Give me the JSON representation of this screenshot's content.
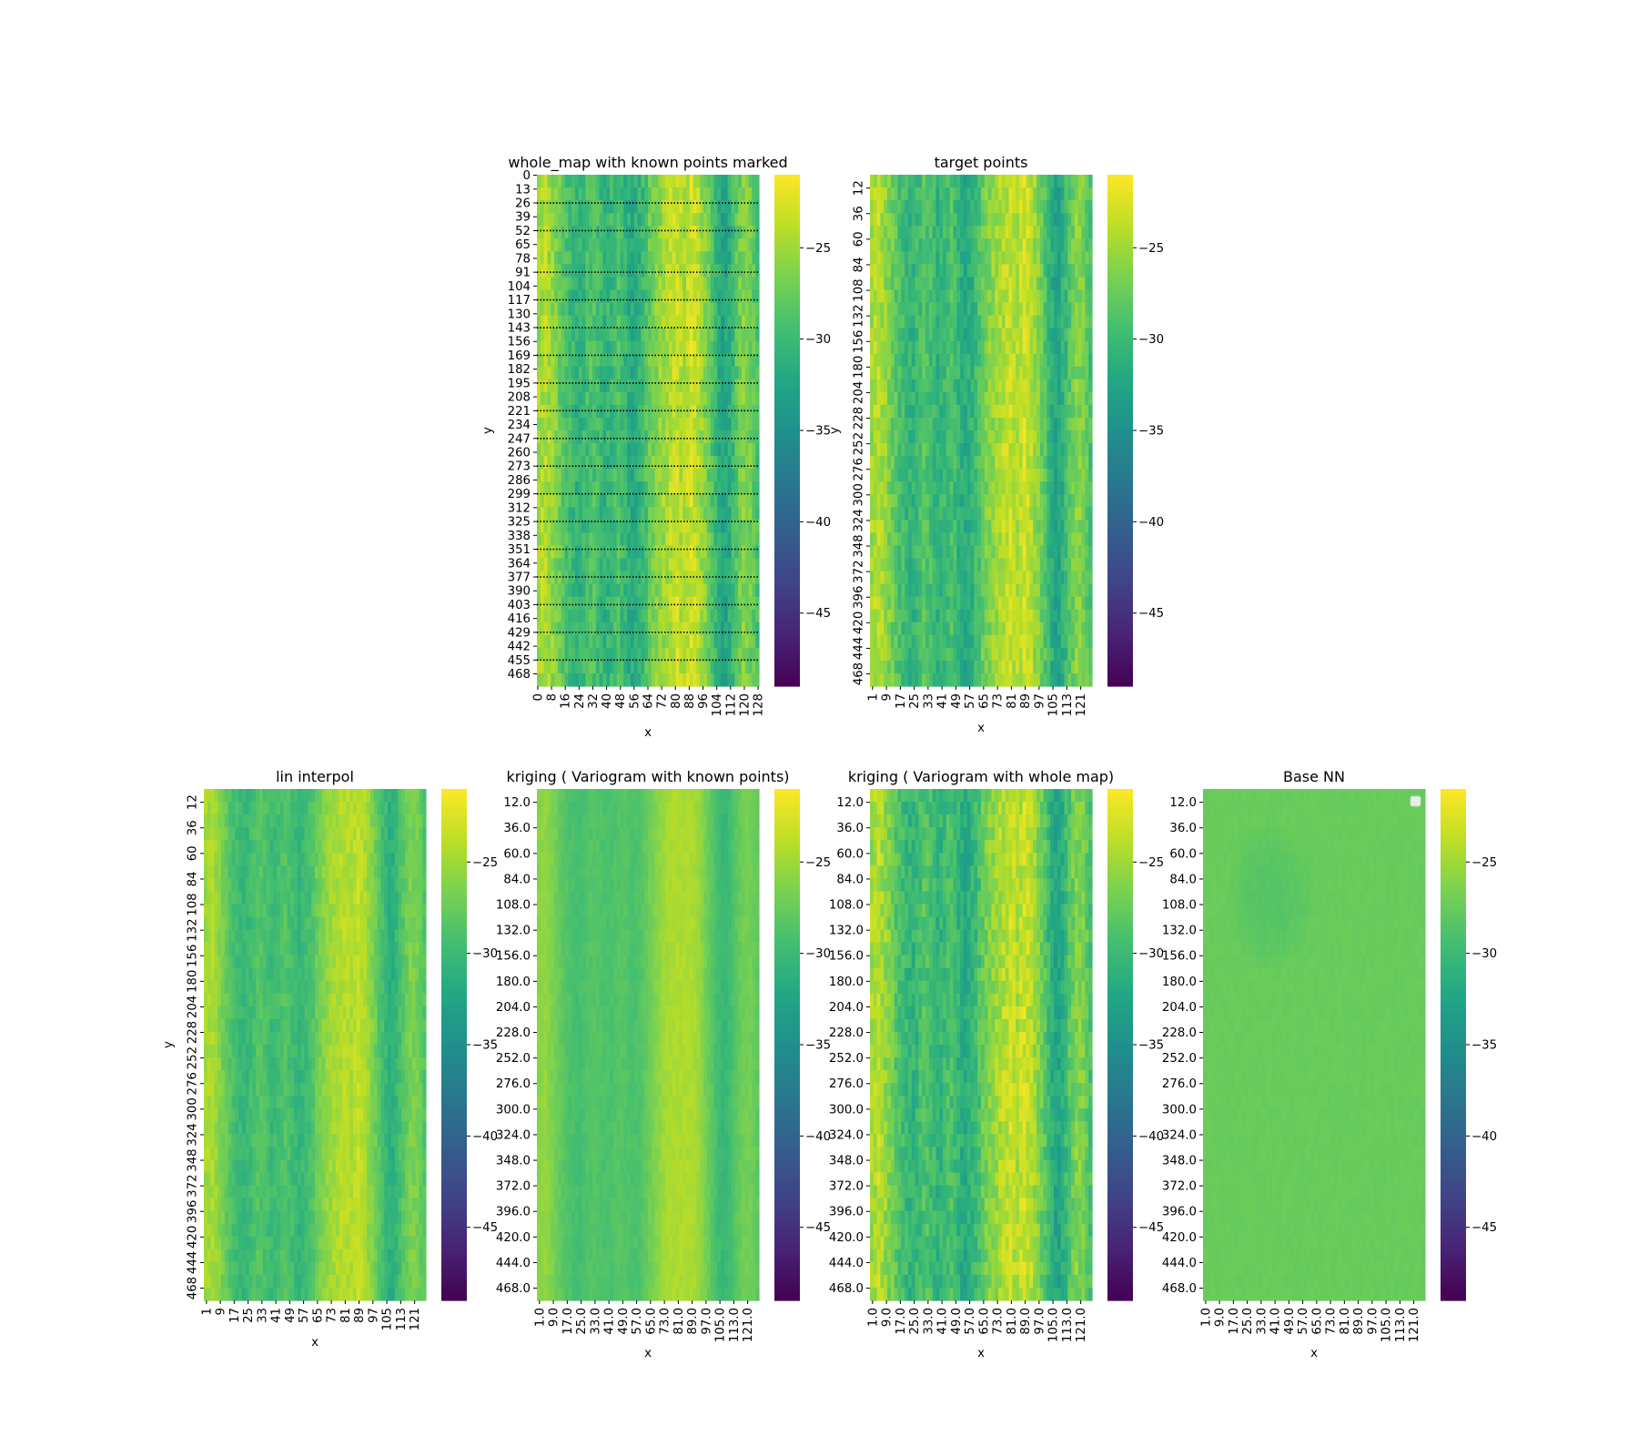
{
  "colorbar": {
    "colormap": "viridis",
    "range": [
      -49,
      -21
    ],
    "ticks": [
      "−25",
      "−30",
      "−35",
      "−40",
      "−45"
    ],
    "tick_values": [
      -25,
      -30,
      -35,
      -40,
      -45
    ]
  },
  "chart_data": [
    {
      "type": "heatmap",
      "title": "whole_map with known points marked",
      "xlabel": "x",
      "ylabel": "y",
      "xticks": [
        "0",
        "8",
        "16",
        "24",
        "32",
        "40",
        "48",
        "56",
        "64",
        "72",
        "80",
        "88",
        "96",
        "104",
        "112",
        "120",
        "128"
      ],
      "yticks": [
        "0",
        "13",
        "26",
        "39",
        "52",
        "65",
        "78",
        "91",
        "104",
        "117",
        "130",
        "143",
        "156",
        "169",
        "182",
        "195",
        "208",
        "221",
        "234",
        "247",
        "260",
        "273",
        "286",
        "299",
        "312",
        "325",
        "338",
        "351",
        "364",
        "377",
        "390",
        "403",
        "416",
        "429",
        "442",
        "455",
        "468"
      ],
      "known_point_rows": [
        26,
        52,
        91,
        117,
        143,
        169,
        195,
        221,
        247,
        273,
        299,
        325,
        351,
        377,
        403,
        429,
        455
      ],
      "column_profile": [
        -25,
        -24,
        -25.5,
        -27,
        -29,
        -30,
        -31,
        -30,
        -28.5,
        -29.5,
        -31,
        -30,
        -29,
        -30.5,
        -32,
        -31,
        -29.5,
        -27,
        -26,
        -25,
        -24,
        -23.5,
        -24.5,
        -23,
        -24,
        -26,
        -28,
        -31,
        -33,
        -31,
        -28,
        -26,
        -27,
        -29
      ],
      "value_range": [
        -49,
        -21
      ]
    },
    {
      "type": "heatmap",
      "title": "target points",
      "xlabel": "x",
      "ylabel": "y",
      "xticks": [
        "1",
        "9",
        "17",
        "25",
        "33",
        "41",
        "49",
        "57",
        "65",
        "73",
        "81",
        "89",
        "97",
        "105",
        "113",
        "121"
      ],
      "yticks": [
        "12",
        "36",
        "60",
        "84",
        "108",
        "132",
        "156",
        "180",
        "204",
        "228",
        "252",
        "276",
        "300",
        "324",
        "348",
        "372",
        "396",
        "420",
        "444",
        "468"
      ],
      "column_profile": [
        -25,
        -24,
        -25.5,
        -27,
        -29,
        -30,
        -31,
        -30,
        -28.5,
        -29.5,
        -31,
        -30,
        -29,
        -30.5,
        -32,
        -31,
        -29.5,
        -27,
        -26,
        -25,
        -24,
        -23.5,
        -24.5,
        -23,
        -24,
        -26,
        -28,
        -31,
        -33,
        -31,
        -28,
        -26,
        -27,
        -29
      ],
      "value_range": [
        -49,
        -21
      ]
    },
    {
      "type": "heatmap",
      "title": "lin interpol",
      "xlabel": "x",
      "ylabel": "y",
      "xticks": [
        "1",
        "9",
        "17",
        "25",
        "33",
        "41",
        "49",
        "57",
        "65",
        "73",
        "81",
        "89",
        "97",
        "105",
        "113",
        "121"
      ],
      "yticks": [
        "12",
        "36",
        "60",
        "84",
        "108",
        "132",
        "156",
        "180",
        "204",
        "228",
        "252",
        "276",
        "300",
        "324",
        "348",
        "372",
        "396",
        "420",
        "444",
        "468"
      ],
      "column_profile": [
        -25,
        -24.5,
        -26,
        -27.5,
        -29,
        -30,
        -30.5,
        -29.5,
        -28.5,
        -29,
        -30,
        -29.5,
        -28.5,
        -29.5,
        -30.5,
        -30,
        -29,
        -27,
        -26,
        -25,
        -24.5,
        -24,
        -24.5,
        -23.5,
        -24.5,
        -26,
        -28,
        -30,
        -31.5,
        -30,
        -28,
        -26.5,
        -27,
        -28.5
      ],
      "value_range": [
        -49,
        -21
      ]
    },
    {
      "type": "heatmap",
      "title": "kriging  ( Variogram with known points)",
      "xlabel": "x",
      "ylabel": "",
      "xticks": [
        "1.0",
        "9.0",
        "17.0",
        "25.0",
        "33.0",
        "41.0",
        "49.0",
        "57.0",
        "65.0",
        "73.0",
        "81.0",
        "89.0",
        "97.0",
        "105.0",
        "113.0",
        "121.0"
      ],
      "yticks": [
        "12.0",
        "36.0",
        "60.0",
        "84.0",
        "108.0",
        "132.0",
        "156.0",
        "180.0",
        "204.0",
        "228.0",
        "252.0",
        "276.0",
        "300.0",
        "324.0",
        "348.0",
        "372.0",
        "396.0",
        "420.0",
        "444.0",
        "468.0"
      ],
      "column_profile": [
        -26,
        -25.5,
        -26.5,
        -27.5,
        -28.5,
        -29,
        -29.5,
        -29,
        -28.5,
        -28.5,
        -29,
        -29,
        -28.5,
        -28.5,
        -29,
        -29,
        -28,
        -27,
        -26,
        -25,
        -24.5,
        -24.5,
        -24.5,
        -24.5,
        -25,
        -26.5,
        -28,
        -29.5,
        -30.5,
        -29.5,
        -28,
        -27,
        -27,
        -28
      ],
      "value_range": [
        -49,
        -21
      ]
    },
    {
      "type": "heatmap",
      "title": "kriging ( Variogram with whole map)",
      "xlabel": "x",
      "ylabel": "",
      "xticks": [
        "1.0",
        "9.0",
        "17.0",
        "25.0",
        "33.0",
        "41.0",
        "49.0",
        "57.0",
        "65.0",
        "73.0",
        "81.0",
        "89.0",
        "97.0",
        "105.0",
        "113.0",
        "121.0"
      ],
      "yticks": [
        "12.0",
        "36.0",
        "60.0",
        "84.0",
        "108.0",
        "132.0",
        "156.0",
        "180.0",
        "204.0",
        "228.0",
        "252.0",
        "276.0",
        "300.0",
        "324.0",
        "348.0",
        "372.0",
        "396.0",
        "420.0",
        "444.0",
        "468.0"
      ],
      "column_profile": [
        -25,
        -24,
        -25.5,
        -27,
        -29,
        -30,
        -31,
        -30,
        -28.5,
        -29.5,
        -31,
        -30,
        -29,
        -30.5,
        -32,
        -31,
        -29.5,
        -27,
        -26,
        -25,
        -24,
        -23.5,
        -24.5,
        -23,
        -24,
        -26,
        -28,
        -31,
        -33,
        -31,
        -28,
        -26,
        -27,
        -29
      ],
      "value_range": [
        -49,
        -21
      ]
    },
    {
      "type": "heatmap",
      "title": "Base NN",
      "xlabel": "x",
      "ylabel": "",
      "xticks": [
        "1.0",
        "9.0",
        "17.0",
        "25.0",
        "33.0",
        "41.0",
        "49.0",
        "57.0",
        "65.0",
        "73.0",
        "81.0",
        "89.0",
        "97.0",
        "105.0",
        "113.0",
        "121.0"
      ],
      "yticks": [
        "12.0",
        "36.0",
        "60.0",
        "84.0",
        "108.0",
        "132.0",
        "156.0",
        "180.0",
        "204.0",
        "228.0",
        "252.0",
        "276.0",
        "300.0",
        "324.0",
        "348.0",
        "372.0",
        "396.0",
        "420.0",
        "444.0",
        "468.0"
      ],
      "base_value": -27.5,
      "upper_left_blob_value": -28.5,
      "value_range": [
        -49,
        -21
      ],
      "legend": "top-right (empty)"
    }
  ]
}
